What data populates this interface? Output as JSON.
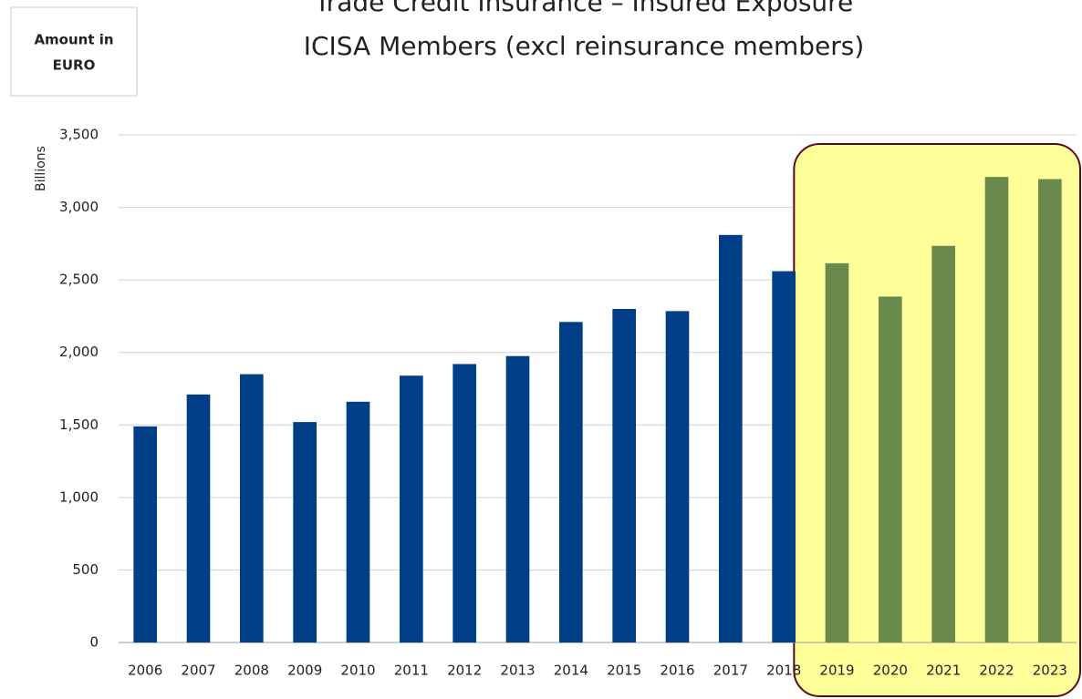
{
  "chart_data": {
    "type": "bar",
    "title": "Trade Credit Insurance – Insured Exposure",
    "subtitle": "ICISA Members (excl reinsurance members)",
    "annotation": [
      "Amount in",
      "EURO"
    ],
    "y_label": "Billions",
    "categories": [
      "2006",
      "2007",
      "2008",
      "2009",
      "2010",
      "2011",
      "2012",
      "2013",
      "2014",
      "2015",
      "2016",
      "2017",
      "2018",
      "2019",
      "2020",
      "2021",
      "2022",
      "2023"
    ],
    "values": [
      1490,
      1710,
      1850,
      1520,
      1660,
      1840,
      1920,
      1975,
      2210,
      2300,
      2285,
      2810,
      2560,
      2615,
      2385,
      2735,
      3210,
      3195
    ],
    "colors": [
      "#003f87",
      "#003f87",
      "#003f87",
      "#003f87",
      "#003f87",
      "#003f87",
      "#003f87",
      "#003f87",
      "#003f87",
      "#003f87",
      "#003f87",
      "#003f87",
      "#003f87",
      "#6a8a4c",
      "#6a8a4c",
      "#6a8a4c",
      "#6a8a4c",
      "#6a8a4c"
    ],
    "ylim": [
      0,
      3500
    ],
    "yticks": [
      0,
      500,
      {
        "value": 1000,
        "label": "1,000"
      },
      {
        "value": 1500,
        "label": "1,500"
      },
      {
        "value": 2000,
        "label": "2,000"
      },
      {
        "value": 2500,
        "label": "2,500"
      },
      {
        "value": 3000,
        "label": "3,000"
      },
      {
        "value": 3500,
        "label": "3,500"
      }
    ],
    "grid": true
  }
}
